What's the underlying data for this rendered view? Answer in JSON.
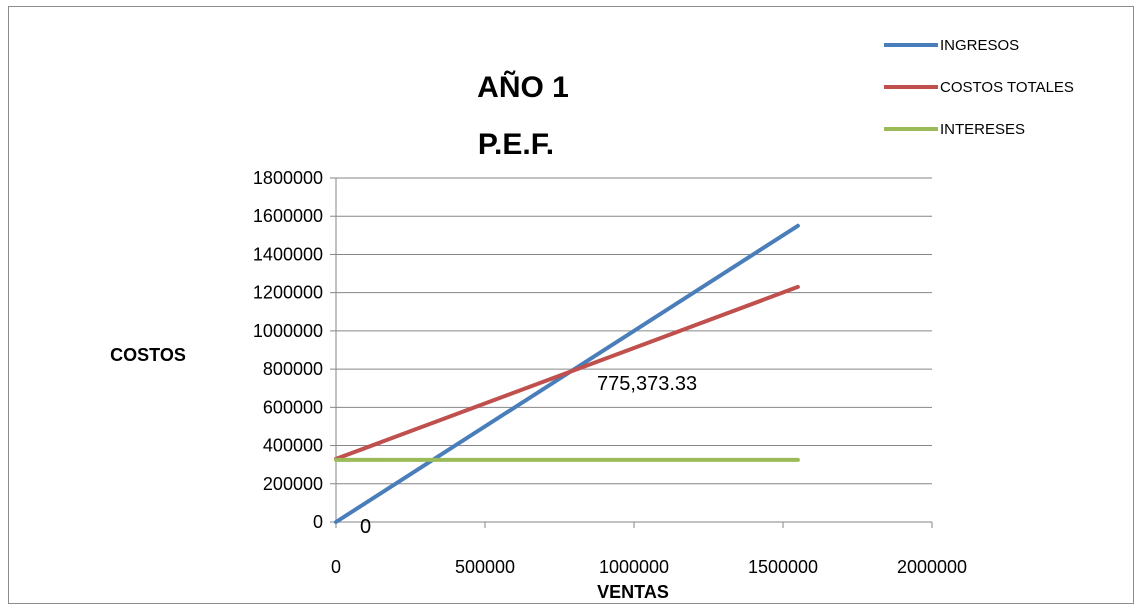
{
  "chart_data": {
    "type": "line",
    "title_line1": "AÑO 1",
    "title_line2": "P.E.F.",
    "xlabel": "VENTAS",
    "ylabel": "COSTOS",
    "xlim": [
      0,
      2000000
    ],
    "ylim": [
      0,
      1800000
    ],
    "x_ticks": [
      "0",
      "500000",
      "1000000",
      "1500000",
      "2000000"
    ],
    "y_ticks": [
      "0",
      "200000",
      "400000",
      "600000",
      "800000",
      "1000000",
      "1200000",
      "1400000",
      "1600000",
      "1800000"
    ],
    "grid": true,
    "legend_position": "top-right",
    "series": [
      {
        "name": "INGRESOS",
        "color": "#4a7ebb",
        "x": [
          0,
          1550000
        ],
        "y": [
          0,
          1550000
        ]
      },
      {
        "name": "COSTOS TOTALES",
        "color": "#c0504d",
        "x": [
          0,
          1550000
        ],
        "y": [
          330000,
          1230000
        ]
      },
      {
        "name": "INTERESES",
        "color": "#9bbb59",
        "x": [
          0,
          1550000
        ],
        "y": [
          325000,
          325000
        ]
      }
    ],
    "annotations": [
      {
        "text": "775,373.33",
        "x": 775373.33,
        "y": 775373.33
      },
      {
        "text": "0",
        "x": 0,
        "y": 0
      }
    ]
  }
}
